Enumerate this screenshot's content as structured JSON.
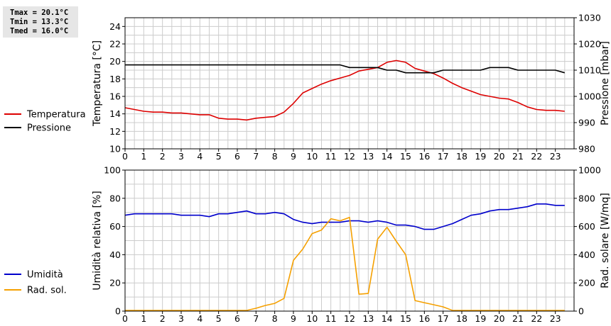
{
  "stats": {
    "tmax": "Tmax = 20.1°C",
    "tmin": "Tmin = 13.3°C",
    "tmed": "Tmed = 16.0°C"
  },
  "colors": {
    "temperature": "#dd0000",
    "pressure": "#000000",
    "humidity": "#0000cc",
    "solar": "#f5a000",
    "grid": "#cccccc",
    "frame": "#000000"
  },
  "chart_data": [
    {
      "type": "line",
      "x_ticks": [
        0,
        1,
        2,
        3,
        4,
        5,
        6,
        7,
        8,
        9,
        10,
        11,
        12,
        13,
        14,
        15,
        16,
        17,
        18,
        19,
        20,
        21,
        22,
        23
      ],
      "xlim": [
        0,
        24
      ],
      "ylabel": "Temperatura [°C]",
      "ylim": [
        10,
        25
      ],
      "y_ticks": [
        10,
        12,
        14,
        16,
        18,
        20,
        22,
        24
      ],
      "ylabel_right": "Pressione [mbar]",
      "ylim_right": [
        980,
        1030
      ],
      "y_ticks_right": [
        980,
        990,
        1000,
        1010,
        1020,
        1030
      ],
      "grid": true,
      "legend_placement": "left",
      "series": [
        {
          "name": "Temperatura",
          "axis": "left",
          "color": "#dd0000",
          "x": [
            0,
            0.5,
            1,
            1.5,
            2,
            2.5,
            3,
            3.5,
            4,
            4.5,
            5,
            5.5,
            6,
            6.5,
            7,
            7.5,
            8,
            8.5,
            9,
            9.5,
            10,
            10.5,
            11,
            11.5,
            12,
            12.5,
            13,
            13.5,
            14,
            14.5,
            15,
            15.5,
            16,
            16.5,
            17,
            17.5,
            18,
            18.5,
            19,
            19.5,
            20,
            20.5,
            21,
            21.5,
            22,
            22.5,
            23,
            23.5
          ],
          "y": [
            14.7,
            14.5,
            14.3,
            14.2,
            14.2,
            14.1,
            14.1,
            14.0,
            13.9,
            13.9,
            13.5,
            13.4,
            13.4,
            13.3,
            13.5,
            13.6,
            13.7,
            14.2,
            15.2,
            16.4,
            16.9,
            17.4,
            17.8,
            18.1,
            18.4,
            18.9,
            19.1,
            19.3,
            19.9,
            20.1,
            19.9,
            19.2,
            18.9,
            18.6,
            18.1,
            17.5,
            17.0,
            16.6,
            16.2,
            16.0,
            15.8,
            15.7,
            15.3,
            14.8,
            14.5,
            14.4,
            14.4,
            14.3
          ]
        },
        {
          "name": "Pressione",
          "axis": "right",
          "color": "#000000",
          "x": [
            0,
            11.5,
            12,
            13.5,
            14,
            14.5,
            15,
            16.5,
            17,
            19,
            19.5,
            20.5,
            21,
            23,
            23.5
          ],
          "y": [
            1012,
            1012,
            1011,
            1011,
            1010,
            1010,
            1009,
            1009,
            1010,
            1010,
            1011,
            1011,
            1010,
            1010,
            1009
          ]
        }
      ]
    },
    {
      "type": "line",
      "x_ticks": [
        0,
        1,
        2,
        3,
        4,
        5,
        6,
        7,
        8,
        9,
        10,
        11,
        12,
        13,
        14,
        15,
        16,
        17,
        18,
        19,
        20,
        21,
        22,
        23
      ],
      "xlim": [
        0,
        24
      ],
      "ylabel": "Umidità relativa [%]",
      "ylim": [
        0,
        100
      ],
      "y_ticks": [
        0,
        20,
        40,
        60,
        80,
        100
      ],
      "ylabel_right": "Rad. solare [W/mq]",
      "ylim_right": [
        0,
        1000
      ],
      "y_ticks_right": [
        0,
        200,
        400,
        600,
        800,
        1000
      ],
      "grid": true,
      "legend_placement": "left",
      "series": [
        {
          "name": "Umidità",
          "axis": "left",
          "color": "#0000cc",
          "x": [
            0,
            0.5,
            1,
            1.5,
            2,
            2.5,
            3,
            3.5,
            4,
            4.5,
            5,
            5.5,
            6,
            6.5,
            7,
            7.5,
            8,
            8.5,
            9,
            9.5,
            10,
            10.5,
            11,
            11.5,
            12,
            12.5,
            13,
            13.5,
            14,
            14.5,
            15,
            15.5,
            16,
            16.5,
            17,
            17.5,
            18,
            18.5,
            19,
            19.5,
            20,
            20.5,
            21,
            21.5,
            22,
            22.5,
            23,
            23.5
          ],
          "y": [
            68,
            69,
            69,
            69,
            69,
            69,
            68,
            68,
            68,
            67,
            69,
            69,
            70,
            71,
            69,
            69,
            70,
            69,
            65,
            63,
            62,
            63,
            63,
            63,
            64,
            64,
            63,
            64,
            63,
            61,
            61,
            60,
            58,
            58,
            60,
            62,
            65,
            68,
            69,
            71,
            72,
            72,
            73,
            74,
            76,
            76,
            75,
            75
          ]
        },
        {
          "name": "Rad. sol.",
          "axis": "right",
          "color": "#f5a000",
          "x": [
            0,
            0.5,
            1,
            1.5,
            2,
            2.5,
            3,
            3.5,
            4,
            4.5,
            5,
            5.5,
            6,
            6.5,
            7,
            7.5,
            8,
            8.5,
            9,
            9.5,
            10,
            10.5,
            11,
            11.5,
            12,
            12.5,
            13,
            13.5,
            14,
            14.5,
            15,
            15.5,
            16,
            16.5,
            17,
            17.5,
            18,
            18.5,
            19,
            19.5,
            20,
            20.5,
            21,
            21.5,
            22,
            22.5,
            23,
            23.5
          ],
          "y": [
            5,
            5,
            5,
            5,
            5,
            5,
            5,
            5,
            5,
            5,
            5,
            5,
            5,
            5,
            20,
            40,
            55,
            90,
            360,
            440,
            550,
            575,
            655,
            640,
            665,
            120,
            125,
            510,
            595,
            495,
            400,
            75,
            60,
            45,
            30,
            5,
            5,
            5,
            5,
            5,
            5,
            5,
            5,
            5,
            5,
            5,
            5,
            5
          ]
        }
      ]
    }
  ]
}
